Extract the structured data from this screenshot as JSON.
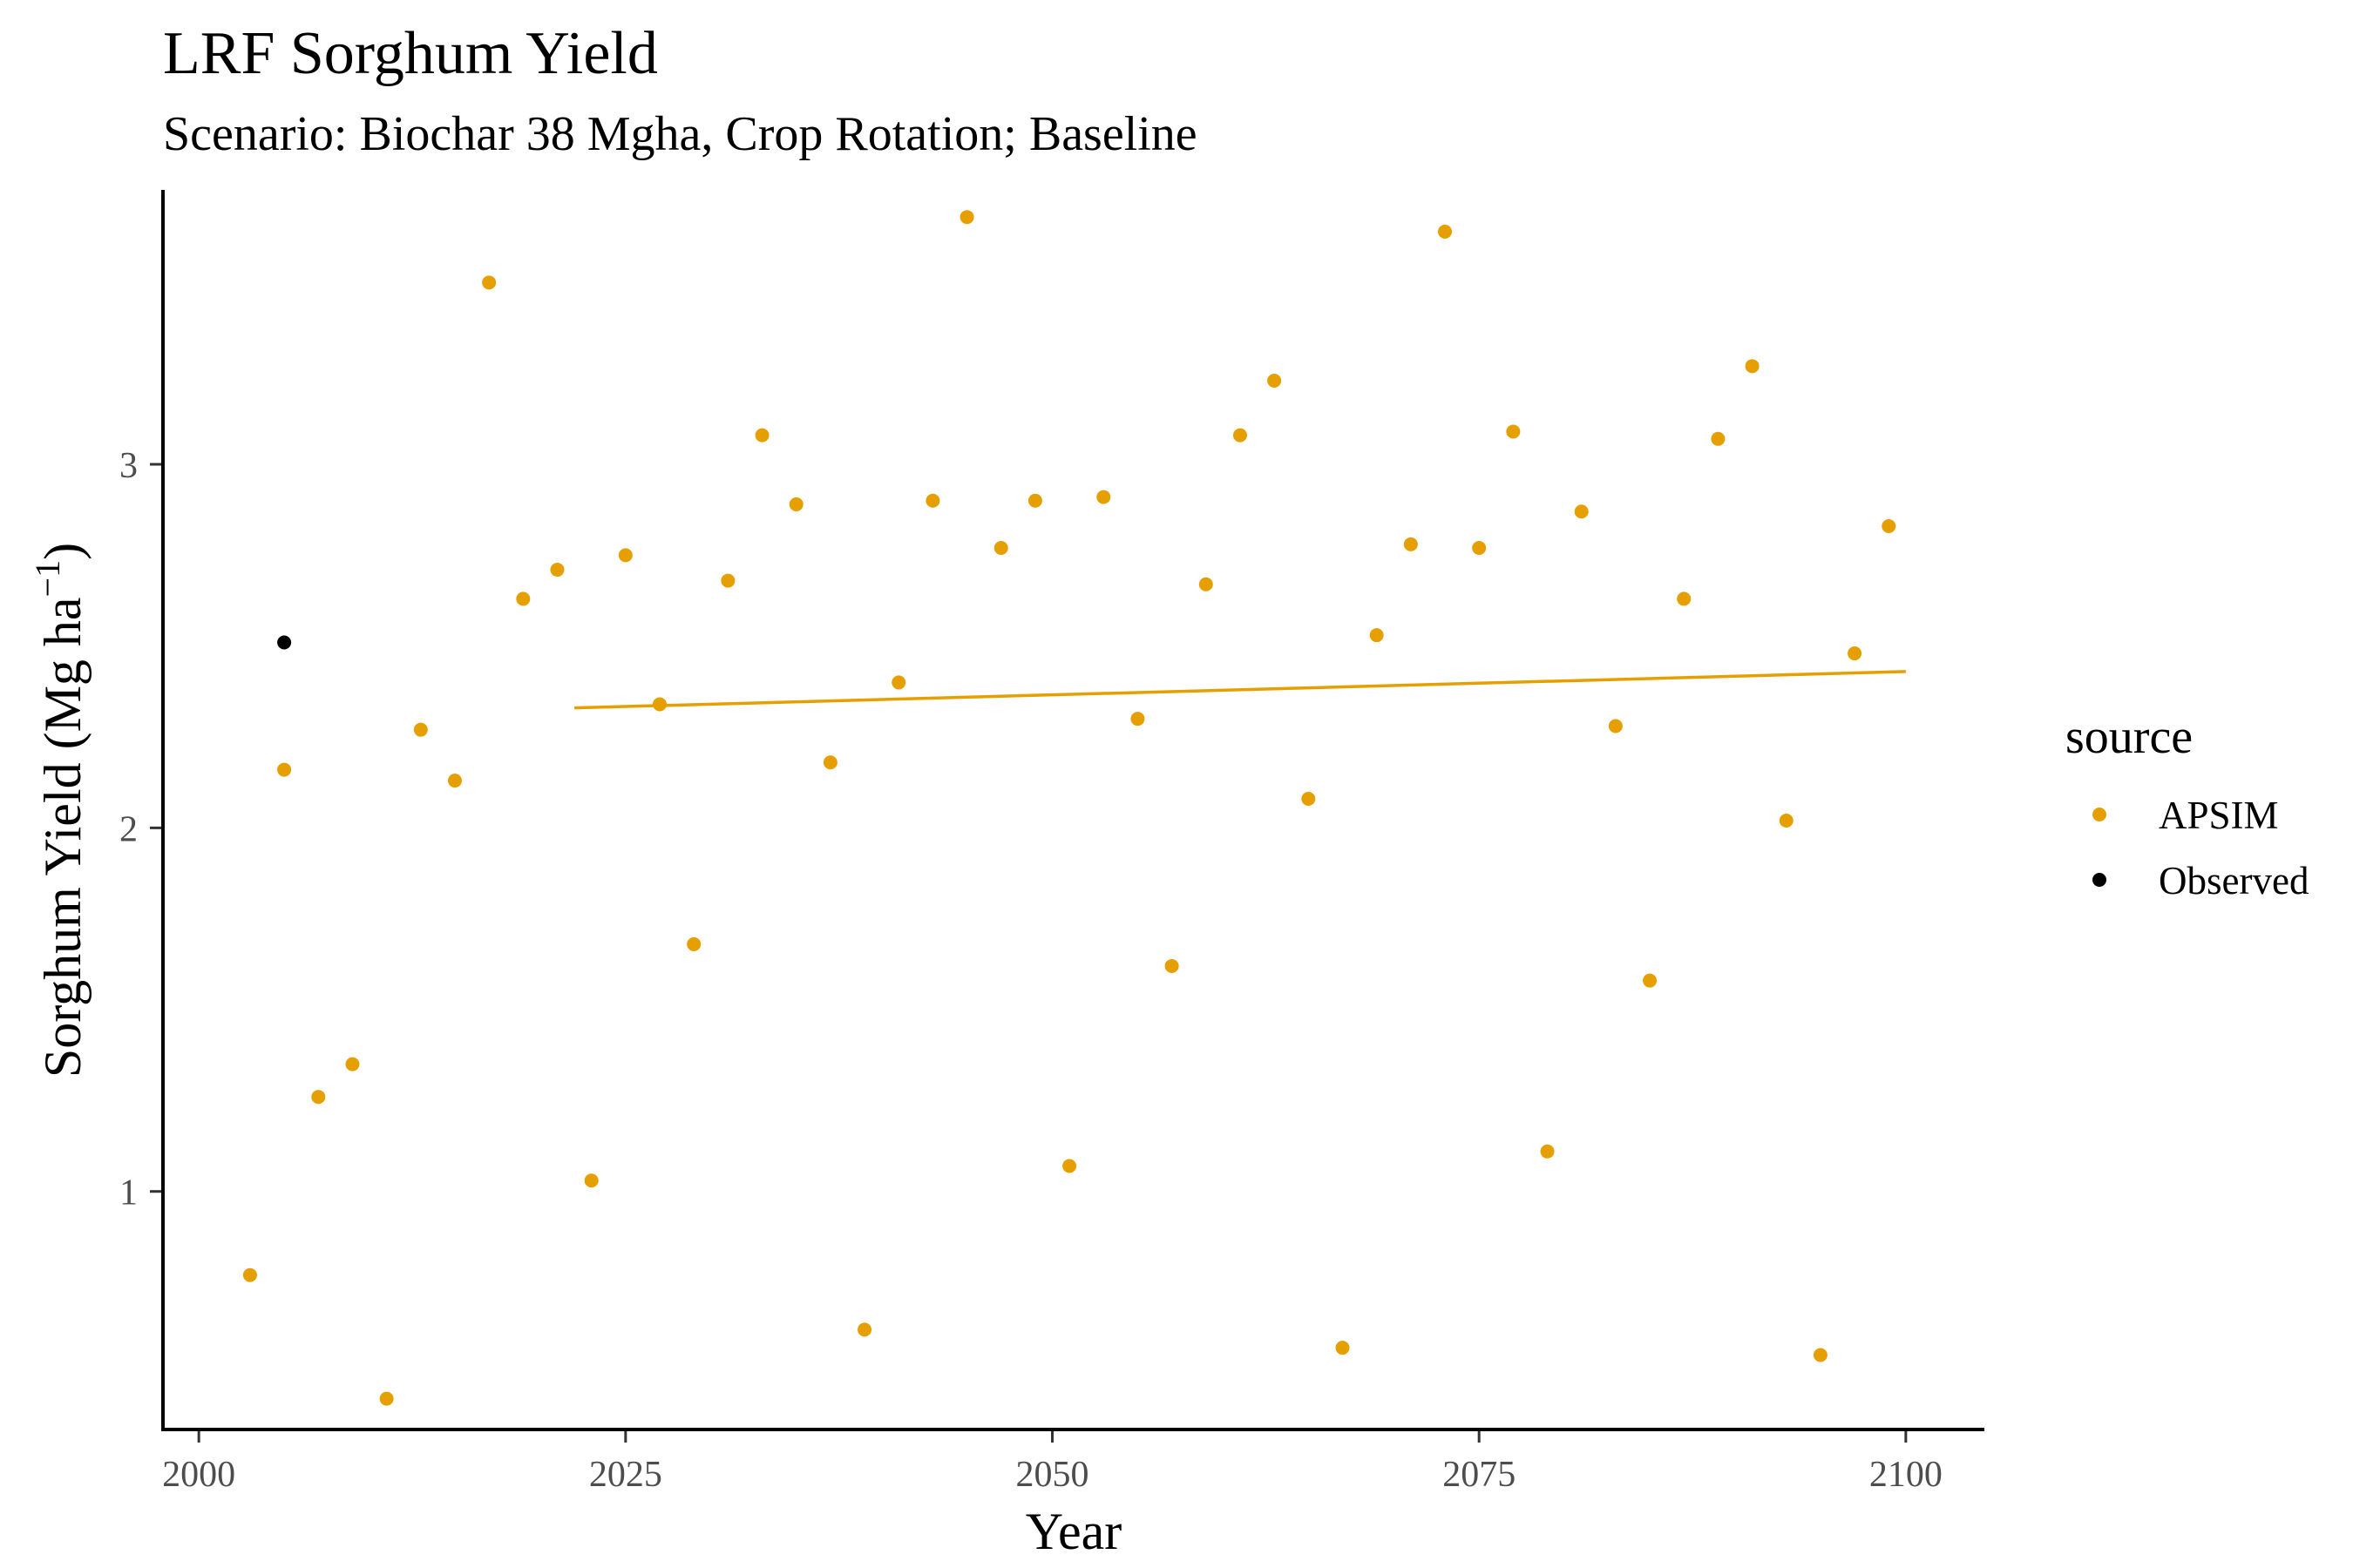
{
  "chart_data": {
    "type": "scatter",
    "title": "LRF Sorghum Yield",
    "subtitle": "Scenario: Biochar 38 Mgha, Crop Rotation; Baseline",
    "xlabel": "Year",
    "ylabel": "Sorghum Yield (Mg ha",
    "ylabel_superscript": "−1",
    "ylabel_close": ")",
    "xlim": [
      1998,
      2104.5
    ],
    "ylim": [
      0.35,
      3.75
    ],
    "xticks": [
      2000,
      2025,
      2050,
      2075,
      2100
    ],
    "yticks": [
      1,
      2,
      3
    ],
    "grid": false,
    "legend": {
      "title": "source",
      "position": "right"
    },
    "series": [
      {
        "name": "APSIM",
        "color": "#E69F00",
        "points": [
          {
            "x": 2003,
            "y": 0.77
          },
          {
            "x": 2005,
            "y": 2.16
          },
          {
            "x": 2007,
            "y": 1.26
          },
          {
            "x": 2009,
            "y": 1.35
          },
          {
            "x": 2011,
            "y": 0.43
          },
          {
            "x": 2013,
            "y": 2.27
          },
          {
            "x": 2015,
            "y": 2.13
          },
          {
            "x": 2017,
            "y": 3.5
          },
          {
            "x": 2019,
            "y": 2.63
          },
          {
            "x": 2021,
            "y": 2.71
          },
          {
            "x": 2023,
            "y": 1.03
          },
          {
            "x": 2025,
            "y": 2.75
          },
          {
            "x": 2027,
            "y": 2.34
          },
          {
            "x": 2029,
            "y": 1.68
          },
          {
            "x": 2031,
            "y": 2.68
          },
          {
            "x": 2033,
            "y": 3.08
          },
          {
            "x": 2035,
            "y": 2.89
          },
          {
            "x": 2037,
            "y": 2.18
          },
          {
            "x": 2039,
            "y": 0.62
          },
          {
            "x": 2041,
            "y": 2.4
          },
          {
            "x": 2043,
            "y": 2.9
          },
          {
            "x": 2045,
            "y": 3.68
          },
          {
            "x": 2047,
            "y": 2.77
          },
          {
            "x": 2049,
            "y": 2.9
          },
          {
            "x": 2051,
            "y": 1.07
          },
          {
            "x": 2053,
            "y": 2.91
          },
          {
            "x": 2055,
            "y": 2.3
          },
          {
            "x": 2057,
            "y": 1.62
          },
          {
            "x": 2059,
            "y": 2.67
          },
          {
            "x": 2061,
            "y": 3.08
          },
          {
            "x": 2063,
            "y": 3.23
          },
          {
            "x": 2065,
            "y": 2.08
          },
          {
            "x": 2067,
            "y": 0.57
          },
          {
            "x": 2069,
            "y": 2.53
          },
          {
            "x": 2071,
            "y": 2.78
          },
          {
            "x": 2073,
            "y": 3.64
          },
          {
            "x": 2075,
            "y": 2.77
          },
          {
            "x": 2077,
            "y": 3.09
          },
          {
            "x": 2079,
            "y": 1.11
          },
          {
            "x": 2081,
            "y": 2.87
          },
          {
            "x": 2083,
            "y": 2.28
          },
          {
            "x": 2085,
            "y": 1.58
          },
          {
            "x": 2087,
            "y": 2.63
          },
          {
            "x": 2089,
            "y": 3.07
          },
          {
            "x": 2091,
            "y": 3.27
          },
          {
            "x": 2093,
            "y": 2.02
          },
          {
            "x": 2095,
            "y": 0.55
          },
          {
            "x": 2097,
            "y": 2.48
          },
          {
            "x": 2099,
            "y": 2.83
          }
        ],
        "trend_line": {
          "x": [
            2022,
            2100
          ],
          "y": [
            2.33,
            2.43
          ]
        }
      },
      {
        "name": "Observed",
        "color": "#000000",
        "points": [
          {
            "x": 2005,
            "y": 2.51
          }
        ]
      }
    ]
  }
}
